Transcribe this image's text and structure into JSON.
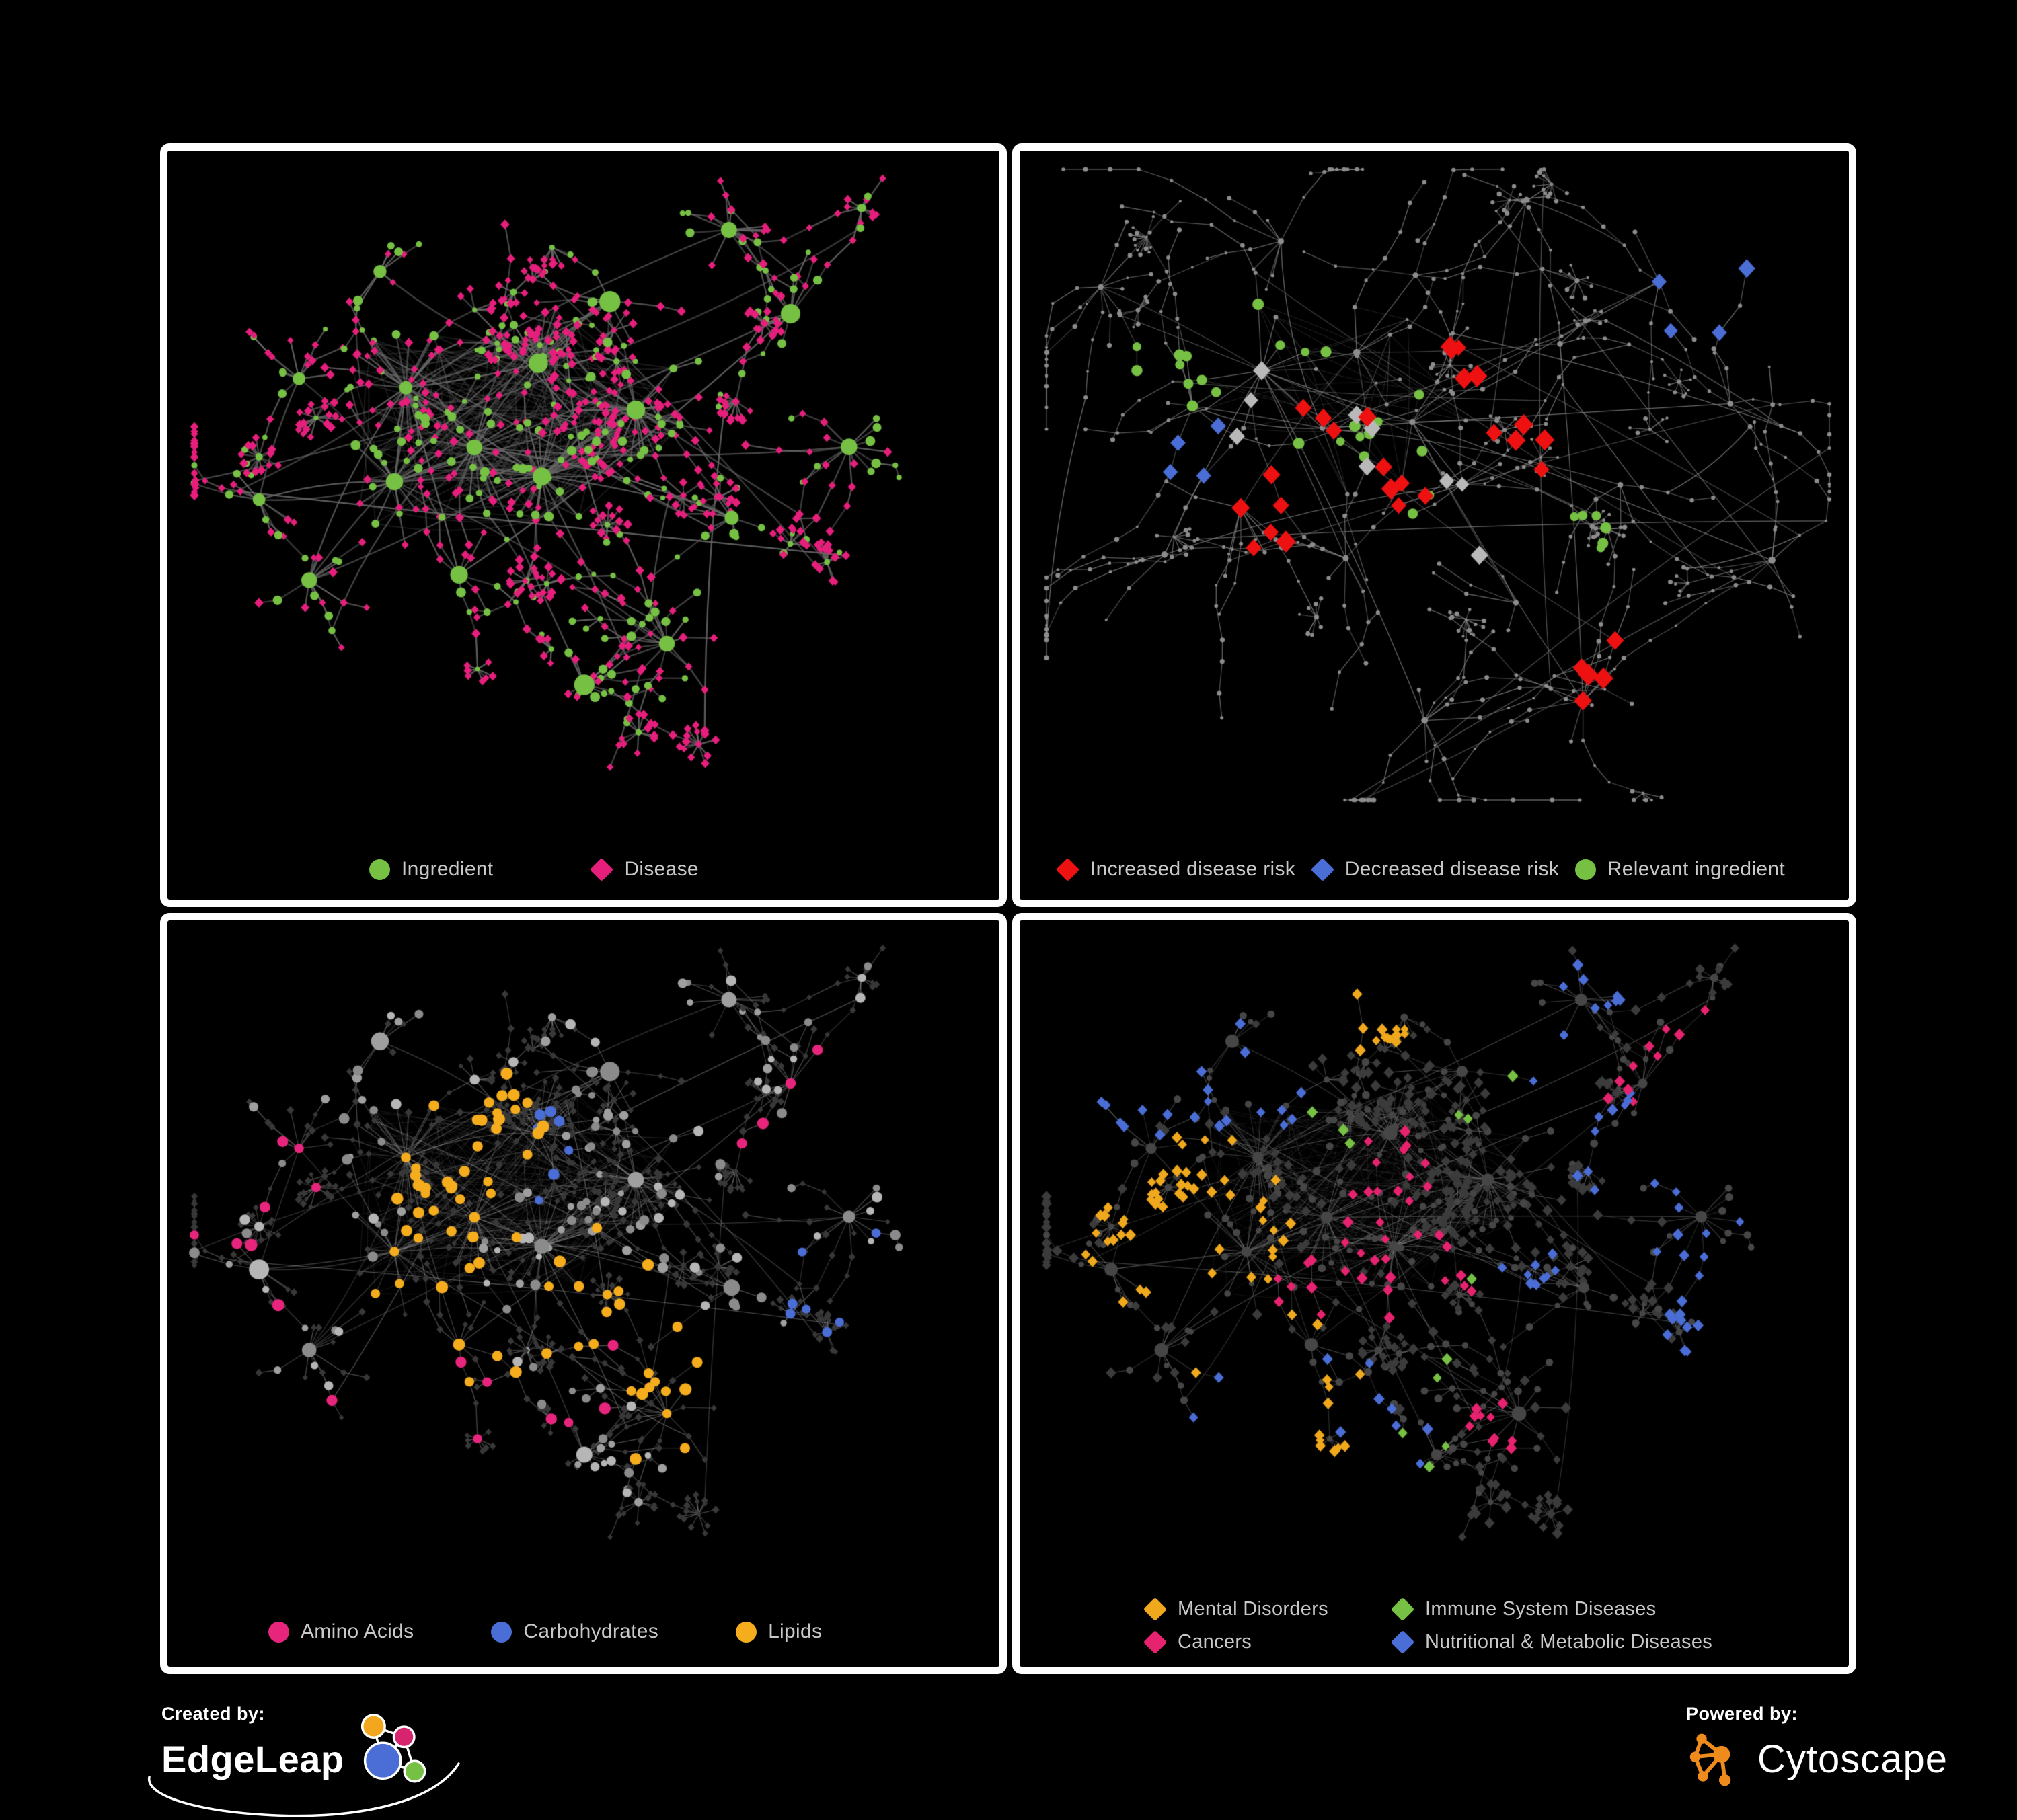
{
  "colors": {
    "background": "#000000",
    "panel_border": "#ffffff",
    "legend_text": "#c8c8c8",
    "brand_text": "#ffffff"
  },
  "branding": {
    "created_by": "Created by:",
    "edgeleap": "EdgeLeap",
    "powered_by": "Powered by:",
    "cytoscape": "Cytoscape"
  },
  "panels": [
    {
      "name": "ingredient-disease-network",
      "legend": [
        {
          "label": "Ingredient",
          "shape": "circle",
          "color": "#76c043"
        },
        {
          "label": "Disease",
          "shape": "diamond",
          "color": "#e61e7c"
        }
      ],
      "render": {
        "layout": "shared",
        "style_seed": 101,
        "edge_color": "#6a6a6a",
        "edge_width": 2.3,
        "edge_alpha": 0.8,
        "ingredient_color": "#76c043",
        "disease_color": "#e61e7c"
      }
    },
    {
      "name": "disease-risk-network",
      "legend": [
        {
          "label": "Increased disease risk",
          "shape": "diamond",
          "color": "#ee1111"
        },
        {
          "label": "Decreased disease risk",
          "shape": "diamond",
          "color": "#4a6dd6"
        },
        {
          "label": "Relevant ingredient",
          "shape": "circle",
          "color": "#76c043"
        }
      ],
      "render": {
        "layout": "sparse",
        "style_seed": 202,
        "edge_color": "#858585",
        "edge_width": 1.3,
        "edge_alpha": 0.75,
        "base_color": "#8c8c8c",
        "highlights": [
          {
            "color": "#ee1111",
            "shape": "diamond",
            "count": 30,
            "r": 12.5,
            "spread": 0.1,
            "anchors": [
              [
                0.34,
                0.4
              ],
              [
                0.46,
                0.5
              ],
              [
                0.28,
                0.54
              ],
              [
                0.7,
                0.78
              ],
              [
                0.52,
                0.3
              ],
              [
                0.6,
                0.44
              ]
            ]
          },
          {
            "color": "#4a6dd6",
            "shape": "diamond",
            "count": 7,
            "r": 11,
            "spread": 0.05,
            "anchors": [
              [
                0.84,
                0.17
              ],
              [
                0.2,
                0.44
              ]
            ]
          },
          {
            "color": "#b9b9b9",
            "shape": "diamond",
            "count": 9,
            "r": 11,
            "spread": 0.09,
            "anchors": [
              [
                0.3,
                0.36
              ],
              [
                0.44,
                0.46
              ],
              [
                0.55,
                0.56
              ]
            ]
          },
          {
            "color": "#76c043",
            "shape": "circle",
            "count": 26,
            "r": 7.5,
            "spread": 0.12,
            "anchors": [
              [
                0.33,
                0.38
              ],
              [
                0.28,
                0.3
              ],
              [
                0.47,
                0.45
              ],
              [
                0.66,
                0.6
              ],
              [
                0.16,
                0.33
              ]
            ]
          }
        ]
      }
    },
    {
      "name": "nutrient-category-network",
      "legend": [
        {
          "label": "Amino Acids",
          "shape": "circle",
          "color": "#e8257d"
        },
        {
          "label": "Carbohydrates",
          "shape": "circle",
          "color": "#4a6dd6"
        },
        {
          "label": "Lipids",
          "shape": "circle",
          "color": "#f5ad1d"
        }
      ],
      "render": {
        "layout": "shared",
        "style_seed": 303,
        "edge_color": "#9b9b9b",
        "edge_width": 1.4,
        "edge_alpha": 0.45,
        "ingredient_shades": [
          "#8b8b8b",
          "#9f9f9f",
          "#b6b6b6"
        ],
        "disease_color": "#383838",
        "highlights": [
          {
            "target": "i",
            "color": "#f5ad1d",
            "shape": "circle",
            "count": 72,
            "r": 8,
            "spread": 0.07,
            "anchors": [
              [
                0.4,
                0.28
              ],
              [
                0.36,
                0.4
              ],
              [
                0.33,
                0.35
              ],
              [
                0.52,
                0.56
              ],
              [
                0.3,
                0.6
              ],
              [
                0.62,
                0.7
              ]
            ]
          },
          {
            "target": "i",
            "color": "#4a6dd6",
            "shape": "circle",
            "count": 13,
            "r": 7.5,
            "spread": 0.05,
            "anchors": [
              [
                0.42,
                0.33
              ],
              [
                0.86,
                0.6
              ]
            ]
          },
          {
            "target": "i",
            "color": "#e8257d",
            "shape": "circle",
            "count": 20,
            "r": 8,
            "spread": 0.18,
            "anchors": [
              [
                0.13,
                0.36
              ],
              [
                0.55,
                0.66
              ],
              [
                0.76,
                0.3
              ],
              [
                0.3,
                0.82
              ],
              [
                0.06,
                0.55
              ]
            ]
          }
        ]
      }
    },
    {
      "name": "disease-category-network",
      "legend": [
        {
          "label": "Mental Disorders",
          "shape": "diamond",
          "color": "#f0a81c"
        },
        {
          "label": "Immune System Diseases",
          "shape": "diamond",
          "color": "#76c043"
        },
        {
          "label": "Cancers",
          "shape": "diamond",
          "color": "#e7226f"
        },
        {
          "label": "Nutritional & Metabolic Diseases",
          "shape": "diamond",
          "color": "#4a6dd6"
        }
      ],
      "render": {
        "layout": "shared",
        "style_seed": 404,
        "edge_color": "#9b9b9b",
        "edge_width": 1.2,
        "edge_alpha": 0.4,
        "ingredient_color": "#464646",
        "disease_color": "#3b3b3b",
        "highlights": [
          {
            "target": "d",
            "color": "#f0a81c",
            "shape": "diamond",
            "count": 78,
            "r": 7,
            "spread": 0.055,
            "anchors": [
              [
                0.15,
                0.44
              ],
              [
                0.2,
                0.38
              ],
              [
                0.12,
                0.5
              ],
              [
                0.25,
                0.46
              ],
              [
                0.42,
                0.12
              ],
              [
                0.3,
                0.74
              ]
            ]
          },
          {
            "target": "d",
            "color": "#e7226f",
            "shape": "diamond",
            "count": 58,
            "r": 7,
            "spread": 0.06,
            "anchors": [
              [
                0.42,
                0.46
              ],
              [
                0.48,
                0.54
              ],
              [
                0.36,
                0.52
              ],
              [
                0.44,
                0.38
              ],
              [
                0.82,
                0.22
              ],
              [
                0.58,
                0.78
              ]
            ]
          },
          {
            "target": "d",
            "color": "#4a6dd6",
            "shape": "diamond",
            "count": 80,
            "r": 7,
            "spread": 0.055,
            "anchors": [
              [
                0.62,
                0.56
              ],
              [
                0.75,
                0.32
              ],
              [
                0.66,
                0.14
              ],
              [
                0.28,
                0.22
              ],
              [
                0.86,
                0.46
              ],
              [
                0.32,
                0.86
              ],
              [
                0.88,
                0.7
              ],
              [
                0.12,
                0.14
              ]
            ]
          },
          {
            "target": "d",
            "color": "#76c043",
            "shape": "diamond",
            "count": 11,
            "r": 7,
            "spread": 0.16,
            "anchors": [
              [
                0.36,
                0.34
              ],
              [
                0.55,
                0.62
              ],
              [
                0.46,
                0.82
              ],
              [
                0.6,
                0.3
              ]
            ]
          }
        ]
      }
    }
  ]
}
